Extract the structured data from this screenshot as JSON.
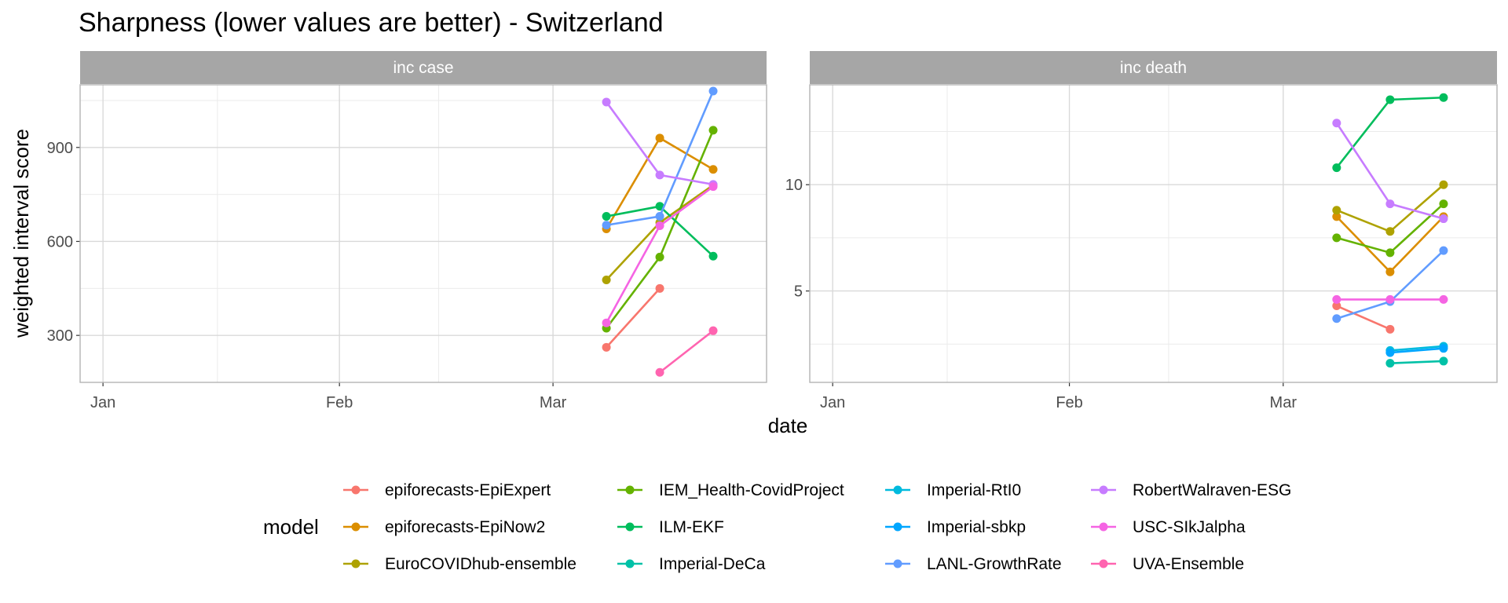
{
  "chart_data": {
    "type": "line",
    "title": "Sharpness (lower values are better) - Switzerland",
    "xlabel": "date",
    "ylabel": "weighted interval score",
    "x_ticks": [
      "Jan",
      "Feb",
      "Mar"
    ],
    "x_dates": [
      "2021-03-08",
      "2021-03-15",
      "2021-03-22"
    ],
    "legend": {
      "title": "model",
      "position": "bottom"
    },
    "colors": {
      "epiforecasts-EpiExpert": "#F8766D",
      "epiforecasts-EpiNow2": "#DB8E00",
      "EuroCOVIDhub-ensemble": "#AEA200",
      "IEM_Health-CovidProject": "#64B200",
      "ILM-EKF": "#00BD5C",
      "Imperial-DeCa": "#00C1A7",
      "Imperial-RtI0": "#00BADE",
      "Imperial-sbkp": "#00A6FF",
      "LANL-GrowthRate": "#619CFF",
      "RobertWalraven-ESG": "#C77CFF",
      "USC-SIkJalpha": "#F564E3",
      "UVA-Ensemble": "#FF64B0"
    },
    "panels": [
      {
        "strip": "inc case",
        "ylim": [
          150,
          1100
        ],
        "y_ticks": [
          300,
          600,
          900
        ],
        "series": [
          {
            "name": "epiforecasts-EpiExpert",
            "values": [
              262,
              450,
              null
            ]
          },
          {
            "name": "epiforecasts-EpiNow2",
            "values": [
              640,
              930,
              830
            ]
          },
          {
            "name": "EuroCOVIDhub-ensemble",
            "values": [
              477,
              660,
              780
            ]
          },
          {
            "name": "IEM_Health-CovidProject",
            "values": [
              323,
              550,
              955
            ]
          },
          {
            "name": "ILM-EKF",
            "values": [
              680,
              712,
              553
            ]
          },
          {
            "name": "LANL-GrowthRate",
            "values": [
              652,
              680,
              1080
            ]
          },
          {
            "name": "RobertWalraven-ESG",
            "values": [
              1045,
              812,
              782
            ]
          },
          {
            "name": "USC-SIkJalpha",
            "values": [
              340,
              650,
              775
            ]
          },
          {
            "name": "UVA-Ensemble",
            "values": [
              null,
              182,
              315
            ]
          }
        ]
      },
      {
        "strip": "inc death",
        "ylim": [
          0.7,
          14.7
        ],
        "y_ticks": [
          5,
          10
        ],
        "series": [
          {
            "name": "epiforecasts-EpiExpert",
            "values": [
              4.3,
              3.2,
              null
            ]
          },
          {
            "name": "epiforecasts-EpiNow2",
            "values": [
              8.5,
              5.9,
              8.5
            ]
          },
          {
            "name": "EuroCOVIDhub-ensemble",
            "values": [
              8.8,
              7.8,
              10.0
            ]
          },
          {
            "name": "IEM_Health-CovidProject",
            "values": [
              7.5,
              6.8,
              9.1
            ]
          },
          {
            "name": "ILM-EKF",
            "values": [
              10.8,
              14.0,
              14.1
            ]
          },
          {
            "name": "Imperial-DeCa",
            "values": [
              null,
              1.6,
              1.7
            ]
          },
          {
            "name": "Imperial-RtI0",
            "values": [
              null,
              2.2,
              2.4
            ]
          },
          {
            "name": "Imperial-sbkp",
            "values": [
              null,
              2.1,
              2.3
            ]
          },
          {
            "name": "LANL-GrowthRate",
            "values": [
              3.7,
              4.5,
              6.9
            ]
          },
          {
            "name": "RobertWalraven-ESG",
            "values": [
              12.9,
              9.1,
              8.4
            ]
          },
          {
            "name": "USC-SIkJalpha",
            "values": [
              4.6,
              4.6,
              4.6
            ]
          }
        ]
      }
    ]
  }
}
